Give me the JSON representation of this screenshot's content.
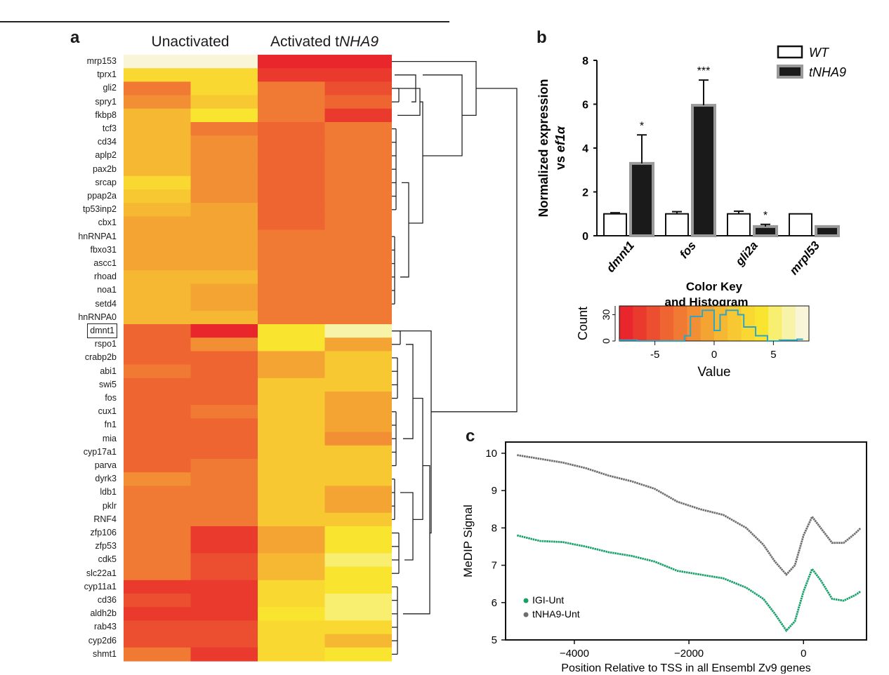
{
  "figure": {
    "panel_a_label": "a",
    "panel_b_label": "b",
    "panel_c_label": "c",
    "col_unactivated": "Unactivated",
    "col_activated_prefix": "Activated t",
    "col_activated_italic": "NHA9",
    "highlighted_gene": "dmnt1"
  },
  "heatmap": {
    "genes": [
      "mrp153",
      "tprx1",
      "gli2",
      "spry1",
      "fkbp8",
      "tcf3",
      "cd34",
      "aplp2",
      "pax2b",
      "srcap",
      "ppap2a",
      "tp53inp2",
      "cbx1",
      "hnRNPA1",
      "fbxo31",
      "ascc1",
      "rhoad",
      "noa1",
      "setd4",
      "hnRNPA0",
      "dmnt1",
      "rspo1",
      "crabp2b",
      "abi1",
      "swi5",
      "fos",
      "cux1",
      "fn1",
      "mia",
      "cyp17a1",
      "parva",
      "dyrk3",
      "ldb1",
      "pklr",
      "RNF4",
      "zfp106",
      "zfp53",
      "cdk5",
      "slc22a1",
      "cyp11a1",
      "cd36",
      "aldh2b",
      "rab43",
      "cyp2d6",
      "shmt1"
    ],
    "palette": [
      "#e8262c",
      "#ea3a2e",
      "#ec4f30",
      "#ee6532",
      "#f07a33",
      "#f28f34",
      "#f4a433",
      "#f6b833",
      "#f8c832",
      "#f9d831",
      "#f9e530",
      "#f8ee70",
      "#f7f3a8",
      "#f8f5d8"
    ],
    "values": [
      [
        13,
        13,
        0,
        0
      ],
      [
        9,
        9,
        1,
        1
      ],
      [
        4,
        9,
        4,
        2
      ],
      [
        5,
        8,
        4,
        3
      ],
      [
        7,
        10,
        4,
        1
      ],
      [
        7,
        4,
        3,
        4
      ],
      [
        7,
        5,
        3,
        4
      ],
      [
        7,
        5,
        3,
        4
      ],
      [
        7,
        5,
        3,
        4
      ],
      [
        9,
        5,
        3,
        4
      ],
      [
        8,
        5,
        3,
        4
      ],
      [
        7,
        6,
        3,
        4
      ],
      [
        6,
        6,
        3,
        4
      ],
      [
        6,
        6,
        4,
        4
      ],
      [
        6,
        6,
        4,
        4
      ],
      [
        6,
        6,
        4,
        4
      ],
      [
        7,
        7,
        4,
        4
      ],
      [
        7,
        6,
        4,
        4
      ],
      [
        7,
        6,
        4,
        4
      ],
      [
        7,
        7,
        4,
        4
      ],
      [
        3,
        0,
        10,
        12
      ],
      [
        3,
        5,
        10,
        6
      ],
      [
        3,
        3,
        6,
        8
      ],
      [
        4,
        3,
        6,
        8
      ],
      [
        3,
        3,
        8,
        8
      ],
      [
        3,
        3,
        8,
        6
      ],
      [
        3,
        4,
        8,
        6
      ],
      [
        3,
        3,
        8,
        6
      ],
      [
        3,
        3,
        8,
        5
      ],
      [
        3,
        3,
        8,
        8
      ],
      [
        3,
        4,
        8,
        8
      ],
      [
        5,
        4,
        8,
        8
      ],
      [
        4,
        4,
        8,
        6
      ],
      [
        4,
        4,
        8,
        6
      ],
      [
        4,
        4,
        8,
        8
      ],
      [
        4,
        1,
        6,
        10
      ],
      [
        4,
        1,
        6,
        10
      ],
      [
        4,
        2,
        7,
        11
      ],
      [
        4,
        2,
        7,
        10
      ],
      [
        1,
        1,
        9,
        10
      ],
      [
        2,
        1,
        9,
        11
      ],
      [
        1,
        1,
        10,
        11
      ],
      [
        2,
        2,
        9,
        9
      ],
      [
        2,
        2,
        9,
        7
      ],
      [
        4,
        1,
        9,
        10
      ]
    ]
  },
  "bar_chart": {
    "type": "bar",
    "ylabel_line1": "Normalized expression",
    "ylabel_line2_prefix": "vs ",
    "ylabel_line2_italic": "ef1α",
    "categories": [
      "dmnt1",
      "fos",
      "gli2a",
      "mrpl53"
    ],
    "ylim": [
      0,
      8
    ],
    "yticks": [
      "0",
      "2",
      "4",
      "6",
      "8"
    ],
    "series": [
      {
        "name": "WT",
        "values": [
          1.0,
          1.0,
          1.0,
          1.0
        ],
        "errors": [
          0.05,
          0.1,
          0.12,
          0.0
        ],
        "fill": "#ffffff"
      },
      {
        "name": "tNHA9",
        "values": [
          3.3,
          5.95,
          0.42,
          0.42
        ],
        "errors": [
          1.3,
          1.15,
          0.1,
          0.0
        ],
        "fill": "#1a1a1a"
      }
    ],
    "significance": [
      "*",
      "***",
      "*",
      ""
    ]
  },
  "color_key": {
    "title_line1": "Color Key",
    "title_line2": "and Histogram",
    "ylabel": "Count",
    "xlabel": "Value",
    "yticks": [
      "0",
      "30"
    ],
    "xticks": [
      "-5",
      "0",
      "5"
    ],
    "line_color": "#2ea5c5"
  },
  "line_chart": {
    "type": "line",
    "xlabel": "Position Relative to TSS in all Ensembl Zv9 genes",
    "ylabel": "MeDIP Signal",
    "xlim": [
      -5200,
      1100
    ],
    "ylim": [
      5,
      10.3
    ],
    "xticks": [
      "-4000",
      "-2000",
      "0"
    ],
    "yticks": [
      "5",
      "6",
      "7",
      "8",
      "9",
      "10"
    ],
    "series": [
      {
        "name": "IGI-Unt",
        "color": "#17a06a",
        "x": [
          -5000,
          -4600,
          -4200,
          -3800,
          -3400,
          -3000,
          -2600,
          -2200,
          -1800,
          -1400,
          -1000,
          -700,
          -500,
          -300,
          -150,
          0,
          150,
          300,
          500,
          700,
          900,
          1000
        ],
        "y": [
          7.8,
          7.65,
          7.62,
          7.5,
          7.35,
          7.25,
          7.1,
          6.85,
          6.75,
          6.65,
          6.4,
          6.1,
          5.7,
          5.25,
          5.5,
          6.3,
          6.9,
          6.6,
          6.1,
          6.05,
          6.2,
          6.3
        ]
      },
      {
        "name": "tNHA9-Unt",
        "color": "#6e6e6e",
        "x": [
          -5000,
          -4600,
          -4200,
          -3800,
          -3400,
          -3000,
          -2600,
          -2200,
          -1800,
          -1400,
          -1000,
          -700,
          -500,
          -300,
          -150,
          0,
          150,
          300,
          500,
          700,
          900,
          1000
        ],
        "y": [
          9.95,
          9.85,
          9.75,
          9.6,
          9.4,
          9.25,
          9.05,
          8.7,
          8.5,
          8.35,
          8.0,
          7.55,
          7.1,
          6.75,
          7.0,
          7.8,
          8.3,
          8.0,
          7.6,
          7.6,
          7.85,
          8.0
        ]
      }
    ]
  }
}
